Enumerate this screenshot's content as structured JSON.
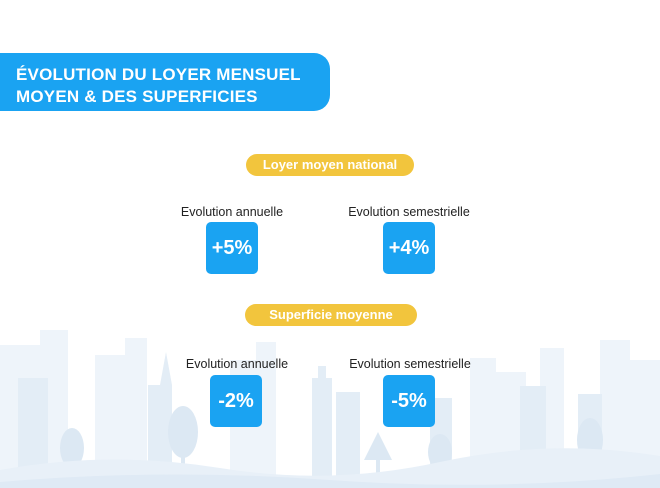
{
  "title": {
    "line1": "ÉVOLUTION DU LOYER MENSUEL",
    "line2": "MOYEN & DES SUPERFICIES"
  },
  "sections": [
    {
      "heading": "Loyer moyen national",
      "annual": {
        "label": "Evolution  annuelle",
        "value": "+5%"
      },
      "semester": {
        "label": "Evolution semestrielle",
        "value": "+4%"
      }
    },
    {
      "heading": "Superficie moyenne",
      "annual": {
        "label": "Evolution  annuelle",
        "value": "-2%"
      },
      "semester": {
        "label": "Evolution semestrielle",
        "value": "-5%"
      }
    }
  ],
  "colors": {
    "accent_blue": "#1aa3f2",
    "accent_yellow": "#f2c53d",
    "skyline_light": "#eef4fa",
    "skyline_mid": "#e3edf6"
  }
}
